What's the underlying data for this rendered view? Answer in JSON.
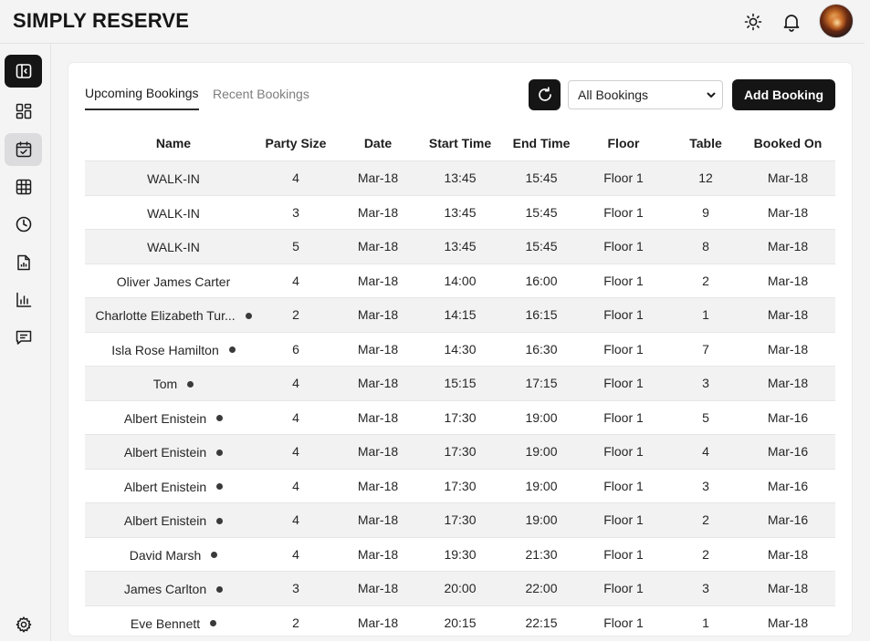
{
  "app": {
    "brand": "SIMPLY RESERVE"
  },
  "header": {
    "icons": [
      "sun-icon",
      "bell-icon"
    ],
    "avatar": "user-avatar"
  },
  "sidebar": {
    "items": [
      {
        "icon": "sidebar-toggle-icon",
        "state": "dark"
      },
      {
        "icon": "dashboard-icon",
        "state": "normal"
      },
      {
        "icon": "calendar-check-icon",
        "state": "active"
      },
      {
        "icon": "grid-icon",
        "state": "normal"
      },
      {
        "icon": "clock-icon",
        "state": "normal"
      },
      {
        "icon": "report-icon",
        "state": "normal"
      },
      {
        "icon": "bar-chart-icon",
        "state": "normal"
      },
      {
        "icon": "message-icon",
        "state": "normal"
      }
    ],
    "footer_icon": "gear-icon"
  },
  "tabs": {
    "upcoming": "Upcoming Bookings",
    "recent": "Recent Bookings"
  },
  "filter": {
    "selected": "All Bookings"
  },
  "actions": {
    "add_booking": "Add Booking"
  },
  "table": {
    "columns": [
      "Name",
      "Party Size",
      "Date",
      "Start Time",
      "End Time",
      "Floor",
      "Table",
      "Booked On"
    ],
    "rows": [
      {
        "name": "WALK-IN",
        "dot": false,
        "party": "4",
        "date": "Mar-18",
        "start": "13:45",
        "end": "15:45",
        "floor": "Floor 1",
        "table": "12",
        "booked": "Mar-18"
      },
      {
        "name": "WALK-IN",
        "dot": false,
        "party": "3",
        "date": "Mar-18",
        "start": "13:45",
        "end": "15:45",
        "floor": "Floor 1",
        "table": "9",
        "booked": "Mar-18"
      },
      {
        "name": "WALK-IN",
        "dot": false,
        "party": "5",
        "date": "Mar-18",
        "start": "13:45",
        "end": "15:45",
        "floor": "Floor 1",
        "table": "8",
        "booked": "Mar-18"
      },
      {
        "name": "Oliver James Carter",
        "dot": false,
        "party": "4",
        "date": "Mar-18",
        "start": "14:00",
        "end": "16:00",
        "floor": "Floor 1",
        "table": "2",
        "booked": "Mar-18"
      },
      {
        "name": "Charlotte Elizabeth Tur...",
        "dot": true,
        "party": "2",
        "date": "Mar-18",
        "start": "14:15",
        "end": "16:15",
        "floor": "Floor 1",
        "table": "1",
        "booked": "Mar-18"
      },
      {
        "name": "Isla Rose Hamilton",
        "dot": true,
        "party": "6",
        "date": "Mar-18",
        "start": "14:30",
        "end": "16:30",
        "floor": "Floor 1",
        "table": "7",
        "booked": "Mar-18"
      },
      {
        "name": "Tom",
        "dot": true,
        "party": "4",
        "date": "Mar-18",
        "start": "15:15",
        "end": "17:15",
        "floor": "Floor 1",
        "table": "3",
        "booked": "Mar-18"
      },
      {
        "name": "Albert Enistein",
        "dot": true,
        "party": "4",
        "date": "Mar-18",
        "start": "17:30",
        "end": "19:00",
        "floor": "Floor 1",
        "table": "5",
        "booked": "Mar-16"
      },
      {
        "name": "Albert Enistein",
        "dot": true,
        "party": "4",
        "date": "Mar-18",
        "start": "17:30",
        "end": "19:00",
        "floor": "Floor 1",
        "table": "4",
        "booked": "Mar-16"
      },
      {
        "name": "Albert Enistein",
        "dot": true,
        "party": "4",
        "date": "Mar-18",
        "start": "17:30",
        "end": "19:00",
        "floor": "Floor 1",
        "table": "3",
        "booked": "Mar-16"
      },
      {
        "name": "Albert Enistein",
        "dot": true,
        "party": "4",
        "date": "Mar-18",
        "start": "17:30",
        "end": "19:00",
        "floor": "Floor 1",
        "table": "2",
        "booked": "Mar-16"
      },
      {
        "name": "David Marsh",
        "dot": true,
        "party": "4",
        "date": "Mar-18",
        "start": "19:30",
        "end": "21:30",
        "floor": "Floor 1",
        "table": "2",
        "booked": "Mar-18"
      },
      {
        "name": "James Carlton",
        "dot": true,
        "party": "3",
        "date": "Mar-18",
        "start": "20:00",
        "end": "22:00",
        "floor": "Floor 1",
        "table": "3",
        "booked": "Mar-18"
      },
      {
        "name": "Eve Bennett",
        "dot": true,
        "party": "2",
        "date": "Mar-18",
        "start": "20:15",
        "end": "22:15",
        "floor": "Floor 1",
        "table": "1",
        "booked": "Mar-18"
      }
    ]
  }
}
